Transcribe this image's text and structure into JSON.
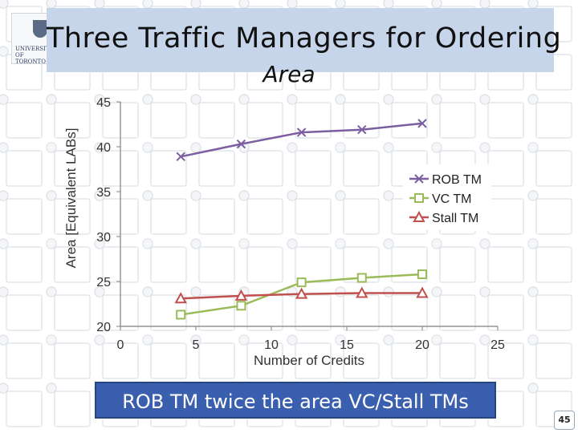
{
  "slide": {
    "title": "Three Traffic Managers for Ordering",
    "subtitle": "Area",
    "logo_text": "UNIVERSITY OF TORONTO",
    "note": "ROB TM twice the area VC/Stall TMs",
    "page_number": "45"
  },
  "chart_data": {
    "type": "line",
    "title": "",
    "xlabel": "Number of Credits",
    "ylabel": "Area [Equivalent LABs]",
    "xlim": [
      0,
      25
    ],
    "ylim": [
      20,
      45
    ],
    "xticks": [
      "0",
      "5",
      "10",
      "15",
      "20",
      "25"
    ],
    "yticks": [
      "20",
      "25",
      "30",
      "35",
      "40",
      "45"
    ],
    "x": [
      4,
      8,
      12,
      16,
      20
    ],
    "series": [
      {
        "name": "ROB TM",
        "marker": "x",
        "color": "#7b5fa0",
        "values": [
          38.9,
          40.3,
          41.6,
          41.9,
          42.6
        ]
      },
      {
        "name": "VC TM",
        "marker": "square",
        "color": "#9bbb59",
        "values": [
          21.3,
          22.3,
          24.9,
          25.4,
          25.8
        ]
      },
      {
        "name": "Stall TM",
        "marker": "triangle",
        "color": "#c0504d",
        "values": [
          23.1,
          23.4,
          23.6,
          23.7,
          23.7
        ]
      }
    ],
    "grid": false,
    "legend_position": "right"
  }
}
